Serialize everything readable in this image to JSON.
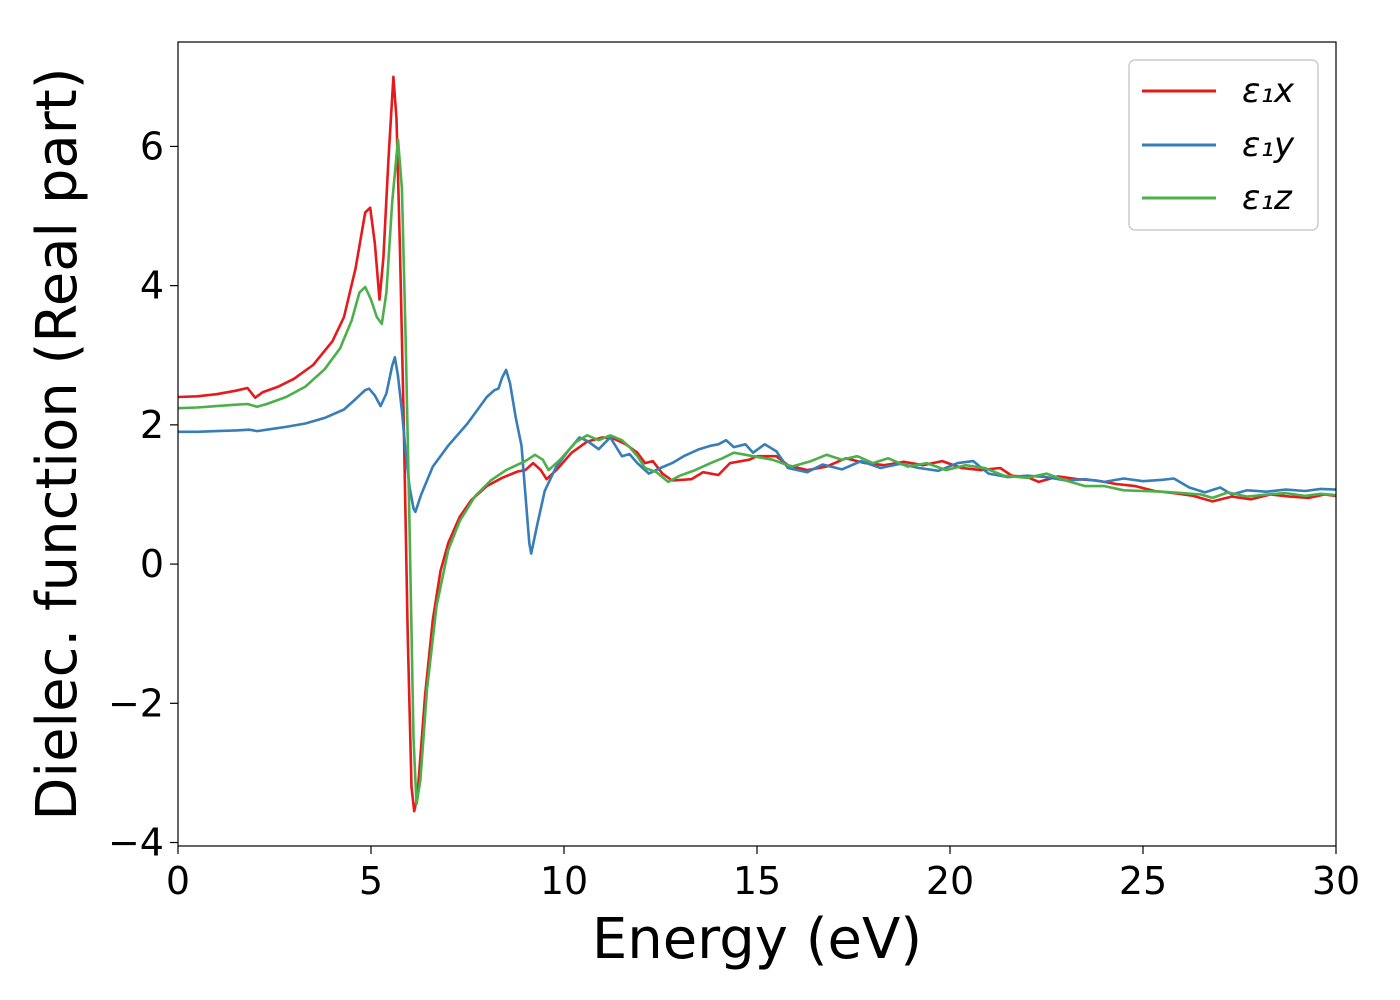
{
  "chart_data": {
    "type": "line",
    "title": "",
    "xlabel": "Energy (eV)",
    "ylabel": "Dielec. function (Real part)",
    "xlim": [
      0,
      30
    ],
    "ylim": [
      -4.05,
      7.5
    ],
    "xticks": [
      0,
      5,
      10,
      15,
      20,
      25,
      30
    ],
    "xtick_labels": [
      "0",
      "5",
      "10",
      "15",
      "20",
      "25",
      "30"
    ],
    "yticks": [
      -4,
      -2,
      0,
      2,
      4,
      6
    ],
    "ytick_labels": [
      "−4",
      "−2",
      "0",
      "2",
      "4",
      "6"
    ],
    "grid": false,
    "legend_position": "top-right",
    "series": [
      {
        "name": "ε₁x",
        "color": "#e41a1c",
        "points": [
          [
            0,
            2.4
          ],
          [
            0.5,
            2.41
          ],
          [
            1,
            2.44
          ],
          [
            1.5,
            2.49
          ],
          [
            1.8,
            2.53
          ],
          [
            2.0,
            2.39
          ],
          [
            2.2,
            2.47
          ],
          [
            2.6,
            2.55
          ],
          [
            3,
            2.66
          ],
          [
            3.5,
            2.86
          ],
          [
            4,
            3.2
          ],
          [
            4.3,
            3.55
          ],
          [
            4.6,
            4.25
          ],
          [
            4.85,
            5.05
          ],
          [
            4.98,
            5.12
          ],
          [
            5.1,
            4.6
          ],
          [
            5.22,
            3.8
          ],
          [
            5.32,
            4.4
          ],
          [
            5.45,
            5.8
          ],
          [
            5.58,
            7.0
          ],
          [
            5.66,
            6.4
          ],
          [
            5.75,
            4.5
          ],
          [
            5.85,
            2.0
          ],
          [
            5.95,
            -1.0
          ],
          [
            6.05,
            -3.2
          ],
          [
            6.12,
            -3.55
          ],
          [
            6.2,
            -3.35
          ],
          [
            6.4,
            -1.9
          ],
          [
            6.6,
            -0.8
          ],
          [
            6.8,
            -0.1
          ],
          [
            7.0,
            0.3
          ],
          [
            7.3,
            0.68
          ],
          [
            7.6,
            0.92
          ],
          [
            8.0,
            1.12
          ],
          [
            8.4,
            1.24
          ],
          [
            8.8,
            1.33
          ],
          [
            9.0,
            1.35
          ],
          [
            9.2,
            1.45
          ],
          [
            9.4,
            1.35
          ],
          [
            9.55,
            1.22
          ],
          [
            9.8,
            1.35
          ],
          [
            10.2,
            1.6
          ],
          [
            10.6,
            1.76
          ],
          [
            11.0,
            1.82
          ],
          [
            11.3,
            1.8
          ],
          [
            11.6,
            1.72
          ],
          [
            11.9,
            1.6
          ],
          [
            12.1,
            1.45
          ],
          [
            12.3,
            1.48
          ],
          [
            12.55,
            1.3
          ],
          [
            12.8,
            1.2
          ],
          [
            13.3,
            1.22
          ],
          [
            13.6,
            1.32
          ],
          [
            14.0,
            1.28
          ],
          [
            14.3,
            1.45
          ],
          [
            14.8,
            1.5
          ],
          [
            15.0,
            1.55
          ],
          [
            15.5,
            1.55
          ],
          [
            15.8,
            1.42
          ],
          [
            16.3,
            1.35
          ],
          [
            16.8,
            1.4
          ],
          [
            17.3,
            1.52
          ],
          [
            17.8,
            1.45
          ],
          [
            18.3,
            1.42
          ],
          [
            18.8,
            1.47
          ],
          [
            19.3,
            1.42
          ],
          [
            19.8,
            1.48
          ],
          [
            20.3,
            1.38
          ],
          [
            20.8,
            1.35
          ],
          [
            21.3,
            1.38
          ],
          [
            21.6,
            1.27
          ],
          [
            22.0,
            1.25
          ],
          [
            22.3,
            1.18
          ],
          [
            22.8,
            1.26
          ],
          [
            23.3,
            1.22
          ],
          [
            23.8,
            1.2
          ],
          [
            24.3,
            1.15
          ],
          [
            24.8,
            1.12
          ],
          [
            25.3,
            1.05
          ],
          [
            25.8,
            1.02
          ],
          [
            26.3,
            0.98
          ],
          [
            26.8,
            0.9
          ],
          [
            27.3,
            0.97
          ],
          [
            27.8,
            0.93
          ],
          [
            28.3,
            1.0
          ],
          [
            28.8,
            0.97
          ],
          [
            29.3,
            0.95
          ],
          [
            29.7,
            1.0
          ],
          [
            30,
            0.98
          ]
        ]
      },
      {
        "name": "ε₁y",
        "color": "#377eb8",
        "points": [
          [
            0,
            1.9
          ],
          [
            0.5,
            1.9
          ],
          [
            1,
            1.91
          ],
          [
            1.5,
            1.92
          ],
          [
            1.85,
            1.93
          ],
          [
            2.05,
            1.91
          ],
          [
            2.3,
            1.93
          ],
          [
            2.8,
            1.97
          ],
          [
            3.3,
            2.02
          ],
          [
            3.8,
            2.1
          ],
          [
            4.3,
            2.22
          ],
          [
            4.6,
            2.37
          ],
          [
            4.85,
            2.5
          ],
          [
            4.95,
            2.52
          ],
          [
            5.1,
            2.42
          ],
          [
            5.25,
            2.27
          ],
          [
            5.4,
            2.45
          ],
          [
            5.55,
            2.85
          ],
          [
            5.62,
            2.97
          ],
          [
            5.7,
            2.7
          ],
          [
            5.8,
            2.2
          ],
          [
            5.9,
            1.6
          ],
          [
            6.0,
            1.1
          ],
          [
            6.1,
            0.8
          ],
          [
            6.15,
            0.75
          ],
          [
            6.3,
            1.0
          ],
          [
            6.6,
            1.4
          ],
          [
            7.0,
            1.7
          ],
          [
            7.5,
            2.02
          ],
          [
            8.0,
            2.4
          ],
          [
            8.2,
            2.5
          ],
          [
            8.3,
            2.52
          ],
          [
            8.4,
            2.68
          ],
          [
            8.5,
            2.79
          ],
          [
            8.6,
            2.6
          ],
          [
            8.75,
            2.1
          ],
          [
            8.9,
            1.7
          ],
          [
            9.0,
            1.0
          ],
          [
            9.1,
            0.3
          ],
          [
            9.15,
            0.15
          ],
          [
            9.3,
            0.55
          ],
          [
            9.5,
            1.05
          ],
          [
            9.8,
            1.4
          ],
          [
            10.1,
            1.62
          ],
          [
            10.4,
            1.82
          ],
          [
            10.6,
            1.77
          ],
          [
            10.9,
            1.65
          ],
          [
            11.2,
            1.82
          ],
          [
            11.5,
            1.55
          ],
          [
            11.7,
            1.58
          ],
          [
            11.9,
            1.45
          ],
          [
            12.2,
            1.3
          ],
          [
            12.5,
            1.38
          ],
          [
            12.8,
            1.45
          ],
          [
            13.1,
            1.55
          ],
          [
            13.5,
            1.65
          ],
          [
            13.8,
            1.7
          ],
          [
            14.0,
            1.72
          ],
          [
            14.2,
            1.78
          ],
          [
            14.4,
            1.68
          ],
          [
            14.7,
            1.72
          ],
          [
            14.9,
            1.6
          ],
          [
            15.2,
            1.72
          ],
          [
            15.5,
            1.62
          ],
          [
            15.8,
            1.38
          ],
          [
            16.3,
            1.32
          ],
          [
            16.7,
            1.43
          ],
          [
            17.2,
            1.36
          ],
          [
            17.7,
            1.48
          ],
          [
            18.2,
            1.38
          ],
          [
            18.7,
            1.44
          ],
          [
            19.2,
            1.38
          ],
          [
            19.7,
            1.34
          ],
          [
            20.2,
            1.45
          ],
          [
            20.6,
            1.48
          ],
          [
            21.0,
            1.3
          ],
          [
            21.5,
            1.25
          ],
          [
            22.0,
            1.27
          ],
          [
            22.5,
            1.25
          ],
          [
            23.0,
            1.2
          ],
          [
            23.5,
            1.22
          ],
          [
            24.0,
            1.18
          ],
          [
            24.5,
            1.23
          ],
          [
            25.0,
            1.19
          ],
          [
            25.5,
            1.21
          ],
          [
            25.8,
            1.23
          ],
          [
            26.2,
            1.1
          ],
          [
            26.6,
            1.03
          ],
          [
            27.0,
            1.1
          ],
          [
            27.3,
            1.0
          ],
          [
            27.7,
            1.06
          ],
          [
            28.2,
            1.04
          ],
          [
            28.7,
            1.07
          ],
          [
            29.2,
            1.05
          ],
          [
            29.6,
            1.08
          ],
          [
            30,
            1.07
          ]
        ]
      },
      {
        "name": "ε₁z",
        "color": "#4daf4a",
        "points": [
          [
            0,
            2.24
          ],
          [
            0.5,
            2.25
          ],
          [
            1,
            2.27
          ],
          [
            1.5,
            2.29
          ],
          [
            1.8,
            2.3
          ],
          [
            2.05,
            2.26
          ],
          [
            2.3,
            2.3
          ],
          [
            2.8,
            2.4
          ],
          [
            3.3,
            2.55
          ],
          [
            3.8,
            2.8
          ],
          [
            4.2,
            3.1
          ],
          [
            4.5,
            3.5
          ],
          [
            4.7,
            3.9
          ],
          [
            4.85,
            3.98
          ],
          [
            5.0,
            3.8
          ],
          [
            5.15,
            3.55
          ],
          [
            5.28,
            3.45
          ],
          [
            5.4,
            3.9
          ],
          [
            5.55,
            5.2
          ],
          [
            5.7,
            6.1
          ],
          [
            5.8,
            5.4
          ],
          [
            5.9,
            3.2
          ],
          [
            6.0,
            0.5
          ],
          [
            6.1,
            -2.5
          ],
          [
            6.18,
            -3.45
          ],
          [
            6.28,
            -3.1
          ],
          [
            6.45,
            -1.8
          ],
          [
            6.7,
            -0.6
          ],
          [
            7.0,
            0.2
          ],
          [
            7.3,
            0.62
          ],
          [
            7.7,
            0.98
          ],
          [
            8.1,
            1.2
          ],
          [
            8.5,
            1.35
          ],
          [
            9.0,
            1.48
          ],
          [
            9.25,
            1.57
          ],
          [
            9.45,
            1.5
          ],
          [
            9.6,
            1.35
          ],
          [
            9.9,
            1.5
          ],
          [
            10.3,
            1.75
          ],
          [
            10.6,
            1.85
          ],
          [
            10.9,
            1.78
          ],
          [
            11.2,
            1.85
          ],
          [
            11.5,
            1.78
          ],
          [
            11.7,
            1.68
          ],
          [
            11.9,
            1.55
          ],
          [
            12.1,
            1.38
          ],
          [
            12.4,
            1.32
          ],
          [
            12.7,
            1.18
          ],
          [
            13.0,
            1.27
          ],
          [
            13.4,
            1.35
          ],
          [
            13.8,
            1.45
          ],
          [
            14.1,
            1.52
          ],
          [
            14.4,
            1.6
          ],
          [
            14.9,
            1.55
          ],
          [
            15.4,
            1.5
          ],
          [
            15.9,
            1.4
          ],
          [
            16.4,
            1.48
          ],
          [
            16.8,
            1.57
          ],
          [
            17.2,
            1.5
          ],
          [
            17.6,
            1.55
          ],
          [
            18.0,
            1.45
          ],
          [
            18.4,
            1.52
          ],
          [
            18.9,
            1.4
          ],
          [
            19.4,
            1.45
          ],
          [
            19.9,
            1.35
          ],
          [
            20.4,
            1.42
          ],
          [
            20.9,
            1.38
          ],
          [
            21.4,
            1.27
          ],
          [
            22.0,
            1.24
          ],
          [
            22.5,
            1.3
          ],
          [
            23.0,
            1.2
          ],
          [
            23.5,
            1.12
          ],
          [
            24.0,
            1.12
          ],
          [
            24.5,
            1.06
          ],
          [
            25.0,
            1.05
          ],
          [
            25.5,
            1.04
          ],
          [
            26.0,
            1.02
          ],
          [
            26.5,
            1.0
          ],
          [
            26.8,
            0.95
          ],
          [
            27.2,
            1.03
          ],
          [
            27.7,
            0.97
          ],
          [
            28.2,
            1.0
          ],
          [
            28.7,
            1.02
          ],
          [
            29.2,
            0.98
          ],
          [
            29.6,
            1.01
          ],
          [
            30,
            0.99
          ]
        ]
      }
    ]
  }
}
